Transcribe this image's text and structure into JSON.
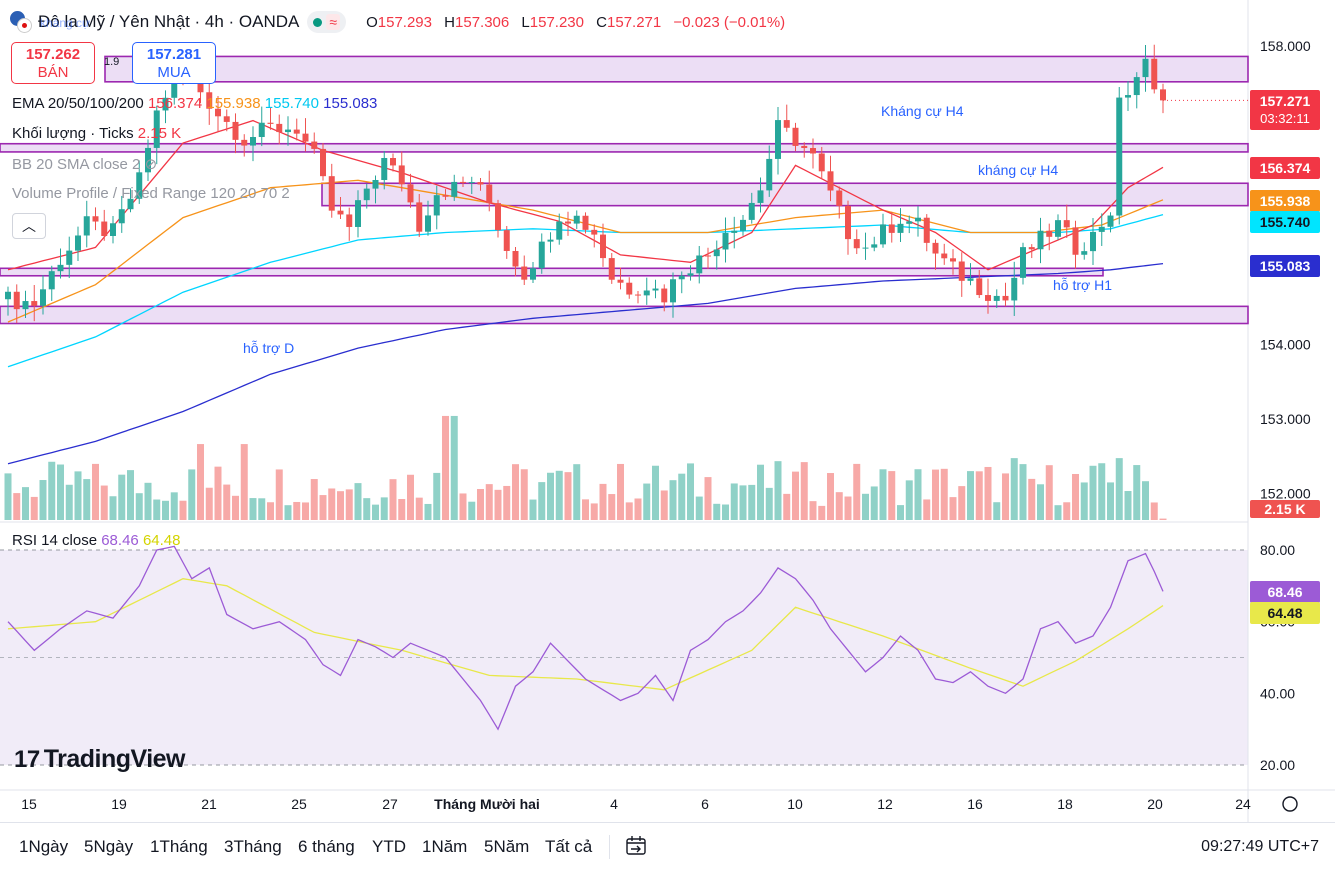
{
  "header": {
    "symbol": "Đô la Mỹ / Yên Nhật · 4h · OANDA",
    "open_label": "O",
    "open": "157.293",
    "high_label": "H",
    "high": "157.306",
    "low_label": "L",
    "low": "157.230",
    "close_label": "C",
    "close": "157.271",
    "change": "−0.023 (−0.01%)"
  },
  "trade": {
    "sell_price": "157.262",
    "sell_label": "BÁN",
    "buy_price": "157.281",
    "buy_label": "MUA",
    "spread": "1.9"
  },
  "legend": {
    "ema_name": "EMA 20/50/100/200",
    "ema20": "156.374",
    "ema50": "155.938",
    "ema100": "155.740",
    "ema200": "155.083",
    "volume_name": "Khối lượng · Ticks",
    "volume_value": "2.15 K",
    "bb_name": "BB 20 SMA close 2",
    "vp_name": "Volume Profile / Fixed Range 120 20 70 2",
    "collapse_icon": "chevron-up-icon"
  },
  "annotations": {
    "resistance_h4_a": "Kháng cự H4",
    "resistance_h4_b": "kháng cự H4",
    "support_h1": "hỗ trợ H1",
    "support_d": "hỗ trợ D",
    "faded_top": "kháng cự"
  },
  "price_scale": {
    "ticks": [
      "158.000",
      "154.000",
      "153.000",
      "152.000"
    ],
    "last_price": "157.271",
    "countdown": "03:32:11",
    "ema20_tag": "156.374",
    "ema50_tag": "155.938",
    "ema100_tag": "155.740",
    "ema200_tag": "155.083",
    "volume_tag": "2.15 K"
  },
  "rsi": {
    "name": "RSI 14 close",
    "value": "68.46",
    "ma_value": "64.48",
    "ticks": [
      "80.00",
      "60.00",
      "40.00",
      "20.00"
    ]
  },
  "time_axis": [
    "15",
    "19",
    "21",
    "25",
    "27",
    "Tháng Mười hai",
    "4",
    "6",
    "10",
    "12",
    "16",
    "18",
    "20",
    "24"
  ],
  "bottom_bar": {
    "ranges": [
      "1Ngày",
      "5Ngày",
      "1Tháng",
      "3Tháng",
      "6 tháng",
      "YTD",
      "1Năm",
      "5Năm",
      "Tất cả"
    ],
    "clock": "09:27:49 UTC+7"
  },
  "branding": {
    "logo": "TradingView"
  },
  "colors": {
    "up": "#26a69a",
    "down": "#ef5350",
    "ema20": "#f23645",
    "ema50": "#f7931a",
    "ema100": "#00d5ff",
    "ema200": "#2a2ecf",
    "zone_fill": "#e7d6f3",
    "zone_border": "#9c27b0",
    "rsi": "#9c5bd6",
    "rsi_ma": "#e8e84a"
  },
  "chart_data": {
    "type": "candlestick",
    "title": "USD/JPY 4h OANDA",
    "ylim": [
      151.6,
      158.4
    ],
    "rsi_ylim": [
      15,
      85
    ],
    "x_range": [
      0,
      137
    ],
    "close_anchors": [
      [
        0,
        154.6
      ],
      [
        3,
        154.55
      ],
      [
        6,
        155.15
      ],
      [
        9,
        155.6
      ],
      [
        12,
        155.5
      ],
      [
        15,
        156.2
      ],
      [
        17,
        157.1
      ],
      [
        19,
        157.6
      ],
      [
        21,
        157.55
      ],
      [
        24,
        157.1
      ],
      [
        27,
        156.75
      ],
      [
        30,
        156.9
      ],
      [
        33,
        156.9
      ],
      [
        35,
        156.5
      ],
      [
        37,
        155.8
      ],
      [
        39,
        155.55
      ],
      [
        41,
        156.1
      ],
      [
        43,
        156.45
      ],
      [
        45,
        156.2
      ],
      [
        47,
        155.6
      ],
      [
        49,
        156.05
      ],
      [
        51,
        156.1
      ],
      [
        53,
        156.2
      ],
      [
        55,
        155.9
      ],
      [
        57,
        155.3
      ],
      [
        59,
        154.95
      ],
      [
        61,
        155.3
      ],
      [
        63,
        155.75
      ],
      [
        65,
        155.7
      ],
      [
        67,
        155.5
      ],
      [
        69,
        154.9
      ],
      [
        71,
        154.75
      ],
      [
        73,
        154.8
      ],
      [
        75,
        154.65
      ],
      [
        77,
        155.0
      ],
      [
        80,
        155.2
      ],
      [
        82,
        155.55
      ],
      [
        84,
        155.7
      ],
      [
        86,
        156.1
      ],
      [
        88,
        156.9
      ],
      [
        90,
        156.75
      ],
      [
        92,
        156.5
      ],
      [
        94,
        156.0
      ],
      [
        96,
        155.5
      ],
      [
        98,
        155.3
      ],
      [
        100,
        155.5
      ],
      [
        102,
        155.7
      ],
      [
        104,
        155.6
      ],
      [
        106,
        155.2
      ],
      [
        108,
        155.0
      ],
      [
        110,
        154.85
      ],
      [
        112,
        154.7
      ],
      [
        114,
        154.6
      ],
      [
        116,
        155.2
      ],
      [
        118,
        155.4
      ],
      [
        120,
        155.6
      ],
      [
        122,
        155.3
      ],
      [
        124,
        155.45
      ],
      [
        126,
        155.8
      ],
      [
        127,
        157.2
      ],
      [
        129,
        157.6
      ],
      [
        130,
        157.75
      ],
      [
        131,
        157.35
      ],
      [
        132,
        157.27
      ]
    ],
    "ema20_anchors": [
      [
        0,
        155.0
      ],
      [
        10,
        155.3
      ],
      [
        20,
        156.7
      ],
      [
        28,
        157.0
      ],
      [
        36,
        156.6
      ],
      [
        45,
        156.3
      ],
      [
        55,
        155.9
      ],
      [
        63,
        155.65
      ],
      [
        70,
        155.2
      ],
      [
        78,
        155.1
      ],
      [
        85,
        155.5
      ],
      [
        90,
        156.4
      ],
      [
        95,
        156.1
      ],
      [
        100,
        155.8
      ],
      [
        106,
        155.5
      ],
      [
        112,
        155.0
      ],
      [
        118,
        155.3
      ],
      [
        124,
        155.6
      ],
      [
        128,
        156.1
      ],
      [
        132,
        156.374
      ]
    ],
    "ema50_anchors": [
      [
        0,
        154.3
      ],
      [
        10,
        154.8
      ],
      [
        20,
        155.7
      ],
      [
        30,
        156.1
      ],
      [
        40,
        156.2
      ],
      [
        50,
        156.0
      ],
      [
        60,
        155.8
      ],
      [
        70,
        155.5
      ],
      [
        80,
        155.5
      ],
      [
        90,
        155.7
      ],
      [
        100,
        155.8
      ],
      [
        110,
        155.5
      ],
      [
        118,
        155.5
      ],
      [
        125,
        155.6
      ],
      [
        132,
        155.938
      ]
    ],
    "ema100_anchors": [
      [
        0,
        153.7
      ],
      [
        10,
        154.1
      ],
      [
        20,
        154.7
      ],
      [
        30,
        155.1
      ],
      [
        40,
        155.4
      ],
      [
        50,
        155.5
      ],
      [
        60,
        155.55
      ],
      [
        70,
        155.5
      ],
      [
        80,
        155.5
      ],
      [
        90,
        155.55
      ],
      [
        100,
        155.6
      ],
      [
        110,
        155.5
      ],
      [
        120,
        155.5
      ],
      [
        126,
        155.55
      ],
      [
        132,
        155.74
      ]
    ],
    "ema200_anchors": [
      [
        0,
        152.4
      ],
      [
        10,
        152.7
      ],
      [
        20,
        153.1
      ],
      [
        30,
        153.6
      ],
      [
        40,
        153.95
      ],
      [
        50,
        154.2
      ],
      [
        60,
        154.35
      ],
      [
        70,
        154.45
      ],
      [
        80,
        154.55
      ],
      [
        90,
        154.75
      ],
      [
        100,
        154.85
      ],
      [
        110,
        154.9
      ],
      [
        120,
        154.95
      ],
      [
        126,
        155.0
      ],
      [
        132,
        155.083
      ]
    ],
    "rsi_anchors": [
      [
        0,
        60
      ],
      [
        3,
        52
      ],
      [
        6,
        58
      ],
      [
        9,
        63
      ],
      [
        12,
        61
      ],
      [
        15,
        70
      ],
      [
        17,
        80
      ],
      [
        19,
        81
      ],
      [
        21,
        72
      ],
      [
        23,
        75
      ],
      [
        25,
        62
      ],
      [
        28,
        58
      ],
      [
        31,
        60
      ],
      [
        34,
        55
      ],
      [
        36,
        48
      ],
      [
        38,
        45
      ],
      [
        40,
        55
      ],
      [
        42,
        53
      ],
      [
        44,
        50
      ],
      [
        46,
        54
      ],
      [
        48,
        52
      ],
      [
        50,
        50
      ],
      [
        52,
        44
      ],
      [
        54,
        38
      ],
      [
        56,
        30
      ],
      [
        58,
        42
      ],
      [
        60,
        46
      ],
      [
        62,
        54
      ],
      [
        64,
        49
      ],
      [
        66,
        44
      ],
      [
        68,
        41
      ],
      [
        70,
        38
      ],
      [
        72,
        40
      ],
      [
        74,
        45
      ],
      [
        76,
        38
      ],
      [
        78,
        52
      ],
      [
        80,
        55
      ],
      [
        82,
        60
      ],
      [
        84,
        63
      ],
      [
        86,
        68
      ],
      [
        88,
        75
      ],
      [
        90,
        72
      ],
      [
        92,
        66
      ],
      [
        94,
        58
      ],
      [
        96,
        52
      ],
      [
        98,
        46
      ],
      [
        100,
        50
      ],
      [
        102,
        56
      ],
      [
        104,
        52
      ],
      [
        106,
        44
      ],
      [
        108,
        43
      ],
      [
        110,
        46
      ],
      [
        112,
        42
      ],
      [
        114,
        40
      ],
      [
        116,
        44
      ],
      [
        118,
        58
      ],
      [
        120,
        60
      ],
      [
        122,
        54
      ],
      [
        124,
        56
      ],
      [
        126,
        64
      ],
      [
        128,
        77
      ],
      [
        130,
        79
      ],
      [
        131,
        74
      ],
      [
        132,
        68.46
      ]
    ],
    "rsi_ma_anchors": [
      [
        0,
        58
      ],
      [
        10,
        60
      ],
      [
        20,
        72
      ],
      [
        25,
        70
      ],
      [
        35,
        57
      ],
      [
        45,
        52
      ],
      [
        55,
        45
      ],
      [
        65,
        44
      ],
      [
        75,
        41
      ],
      [
        85,
        52
      ],
      [
        90,
        64
      ],
      [
        100,
        56
      ],
      [
        110,
        47
      ],
      [
        116,
        42
      ],
      [
        122,
        49
      ],
      [
        128,
        58
      ],
      [
        132,
        64.48
      ]
    ],
    "volume_range_k": [
      0.5,
      5.3
    ],
    "zones": [
      {
        "name": "resistance",
        "y_low": 157.52,
        "y_high": 157.86
      },
      {
        "name": "resistance",
        "y_low": 156.58,
        "y_high": 156.69
      },
      {
        "name": "resistance",
        "y_low": 155.86,
        "y_high": 156.16
      },
      {
        "name": "support",
        "y_low": 154.92,
        "y_high": 155.02
      },
      {
        "name": "support",
        "y_low": 154.28,
        "y_high": 154.51
      }
    ]
  }
}
